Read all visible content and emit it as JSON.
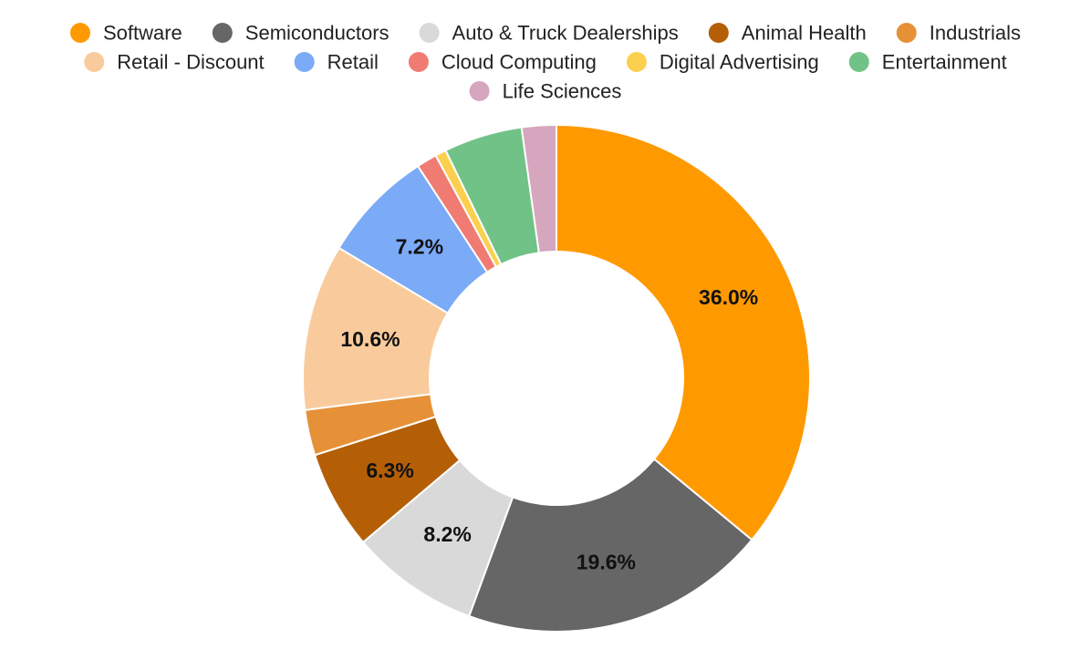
{
  "chart_data": {
    "type": "pie",
    "donut": true,
    "legend_position": "top",
    "slices": [
      {
        "label": "Software",
        "value": 36.0,
        "color": "#FF9900",
        "display": "36.0%"
      },
      {
        "label": "Semiconductors",
        "value": 19.6,
        "color": "#666666",
        "display": "19.6%"
      },
      {
        "label": "Auto & Truck Dealerships",
        "value": 8.2,
        "color": "#D9D9D9",
        "display": "8.2%"
      },
      {
        "label": "Animal Health",
        "value": 6.3,
        "color": "#B45F06",
        "display": "6.3%"
      },
      {
        "label": "Industrials",
        "value": 2.9,
        "color": "#E69138",
        "display": ""
      },
      {
        "label": "Retail - Discount",
        "value": 10.6,
        "color": "#F9CB9C",
        "display": "10.6%"
      },
      {
        "label": "Retail",
        "value": 7.2,
        "color": "#7BAAF7",
        "display": "7.2%"
      },
      {
        "label": "Cloud Computing",
        "value": 1.3,
        "color": "#F07B72",
        "display": ""
      },
      {
        "label": "Digital Advertising",
        "value": 0.7,
        "color": "#FCD04F",
        "display": ""
      },
      {
        "label": "Entertainment",
        "value": 5.0,
        "color": "#71C287",
        "display": ""
      },
      {
        "label": "Life Sciences",
        "value": 2.2,
        "color": "#D5A6BD",
        "display": ""
      }
    ]
  }
}
